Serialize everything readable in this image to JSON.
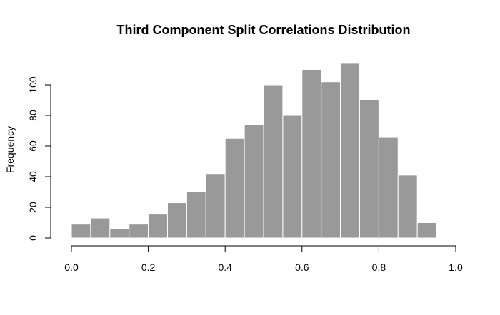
{
  "chart_data": {
    "type": "bar",
    "title": "Third Component Split Correlations Distribution",
    "xlabel": "",
    "ylabel": "Frequency",
    "bin_width": 0.05,
    "bins": [
      {
        "start": 0.0,
        "end": 0.05,
        "count": 9
      },
      {
        "start": 0.05,
        "end": 0.1,
        "count": 13
      },
      {
        "start": 0.1,
        "end": 0.15,
        "count": 6
      },
      {
        "start": 0.15,
        "end": 0.2,
        "count": 9
      },
      {
        "start": 0.2,
        "end": 0.25,
        "count": 16
      },
      {
        "start": 0.25,
        "end": 0.3,
        "count": 23
      },
      {
        "start": 0.3,
        "end": 0.35,
        "count": 30
      },
      {
        "start": 0.35,
        "end": 0.4,
        "count": 42
      },
      {
        "start": 0.4,
        "end": 0.45,
        "count": 65
      },
      {
        "start": 0.45,
        "end": 0.5,
        "count": 74
      },
      {
        "start": 0.5,
        "end": 0.55,
        "count": 100
      },
      {
        "start": 0.55,
        "end": 0.6,
        "count": 80
      },
      {
        "start": 0.6,
        "end": 0.65,
        "count": 110
      },
      {
        "start": 0.65,
        "end": 0.7,
        "count": 102
      },
      {
        "start": 0.7,
        "end": 0.75,
        "count": 114
      },
      {
        "start": 0.75,
        "end": 0.8,
        "count": 90
      },
      {
        "start": 0.8,
        "end": 0.85,
        "count": 66
      },
      {
        "start": 0.85,
        "end": 0.9,
        "count": 41
      },
      {
        "start": 0.9,
        "end": 0.95,
        "count": 10
      }
    ],
    "xlim": [
      0,
      1
    ],
    "ylim": [
      0,
      114
    ],
    "x_ticks": [
      {
        "value": 0.0,
        "label": "0.0"
      },
      {
        "value": 0.2,
        "label": "0.2"
      },
      {
        "value": 0.4,
        "label": "0.4"
      },
      {
        "value": 0.6,
        "label": "0.6"
      },
      {
        "value": 0.8,
        "label": "0.8"
      },
      {
        "value": 1.0,
        "label": "1.0"
      }
    ],
    "y_ticks": [
      {
        "value": 0,
        "label": "0"
      },
      {
        "value": 20,
        "label": "20"
      },
      {
        "value": 40,
        "label": "40"
      },
      {
        "value": 60,
        "label": "60"
      },
      {
        "value": 80,
        "label": "80"
      },
      {
        "value": 100,
        "label": "100"
      }
    ],
    "bar_color": "#999999",
    "bar_edge_color": "#ffffff",
    "grid": false,
    "legend": "none"
  }
}
